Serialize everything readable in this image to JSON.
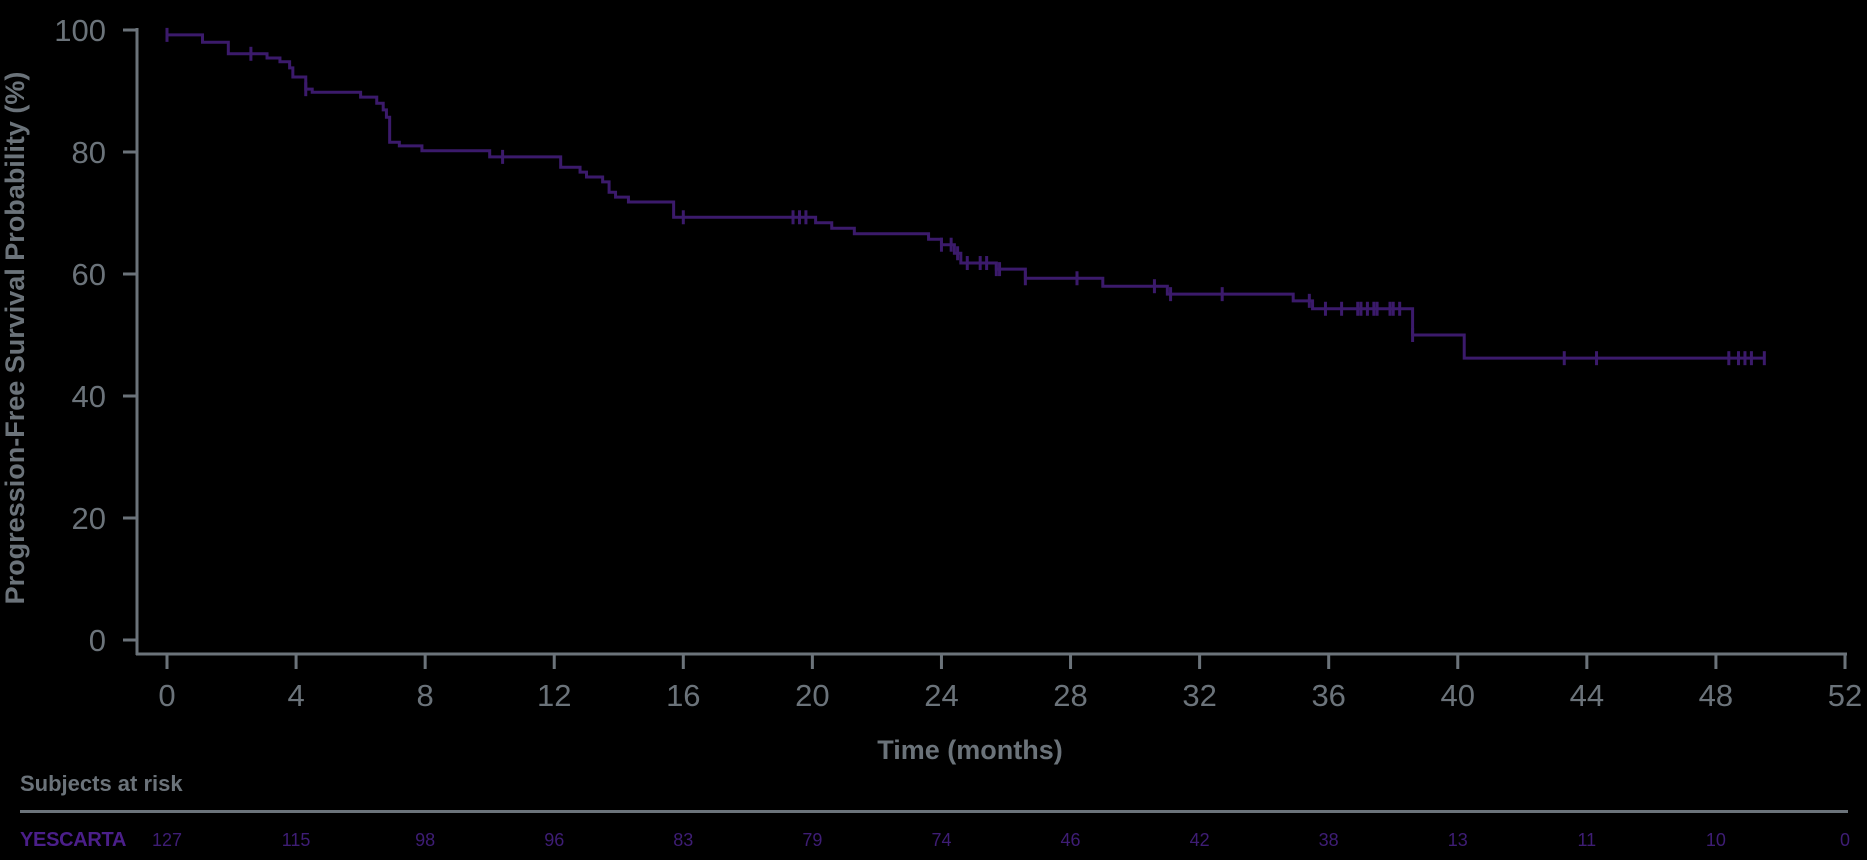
{
  "chart_data": {
    "type": "line",
    "subtype": "kaplan-meier step curve",
    "title": "",
    "xlabel": "Time (months)",
    "ylabel": "Progression-Free Survival Probability (%)",
    "xlim": [
      0,
      52
    ],
    "ylim": [
      0,
      100
    ],
    "x_ticks": [
      0,
      4,
      8,
      12,
      16,
      20,
      24,
      28,
      32,
      36,
      40,
      44,
      48,
      52
    ],
    "y_ticks": [
      0,
      20,
      40,
      60,
      80,
      100
    ],
    "grid": false,
    "legend": null,
    "colors": {
      "axis": "#6b737a",
      "series": "#3b1a6b",
      "series_label": "#4b1f8a",
      "background": "#000000"
    },
    "series": [
      {
        "name": "YESCARTA",
        "steps": [
          [
            0.0,
            99.2
          ],
          [
            1.1,
            98.0
          ],
          [
            1.9,
            96.1
          ],
          [
            3.1,
            95.4
          ],
          [
            3.5,
            94.8
          ],
          [
            3.8,
            93.8
          ],
          [
            3.9,
            92.3
          ],
          [
            4.3,
            90.3
          ],
          [
            4.5,
            89.8
          ],
          [
            6.0,
            89.0
          ],
          [
            6.5,
            88.0
          ],
          [
            6.7,
            86.9
          ],
          [
            6.8,
            85.7
          ],
          [
            6.9,
            81.6
          ],
          [
            7.2,
            81.0
          ],
          [
            7.9,
            80.2
          ],
          [
            10.0,
            79.2
          ],
          [
            12.2,
            77.5
          ],
          [
            12.8,
            76.7
          ],
          [
            13.0,
            75.9
          ],
          [
            13.5,
            75.1
          ],
          [
            13.7,
            73.4
          ],
          [
            13.9,
            72.6
          ],
          [
            14.3,
            71.8
          ],
          [
            15.7,
            69.3
          ],
          [
            20.1,
            68.4
          ],
          [
            20.6,
            67.5
          ],
          [
            21.3,
            66.6
          ],
          [
            23.6,
            65.7
          ],
          [
            24.0,
            64.8
          ],
          [
            24.4,
            63.4
          ],
          [
            24.6,
            61.8
          ],
          [
            25.7,
            60.8
          ],
          [
            26.6,
            59.3
          ],
          [
            29.0,
            58.0
          ],
          [
            31.0,
            56.7
          ],
          [
            34.9,
            55.6
          ],
          [
            35.5,
            54.3
          ],
          [
            38.6,
            50.0
          ],
          [
            40.2,
            46.2
          ]
        ],
        "end_time": 49.5,
        "censored_times": [
          0.0,
          2.6,
          4.3,
          10.4,
          16.0,
          19.4,
          19.6,
          19.8,
          24.0,
          24.3,
          24.5,
          24.8,
          25.2,
          25.4,
          25.7,
          25.8,
          26.6,
          28.2,
          30.6,
          31.1,
          32.7,
          35.4,
          35.9,
          36.4,
          36.9,
          37.0,
          37.2,
          37.4,
          37.5,
          37.9,
          38.0,
          38.2,
          38.6,
          43.3,
          44.3,
          48.4,
          48.7,
          48.9,
          49.1,
          49.5
        ]
      }
    ],
    "risk_table": {
      "title": "Subjects at risk",
      "times": [
        0,
        4,
        8,
        12,
        16,
        20,
        24,
        28,
        32,
        36,
        40,
        44,
        48,
        52
      ],
      "rows": [
        {
          "label": "YESCARTA",
          "values": [
            127,
            115,
            98,
            96,
            83,
            79,
            74,
            46,
            42,
            38,
            13,
            11,
            10,
            0
          ]
        }
      ]
    }
  }
}
